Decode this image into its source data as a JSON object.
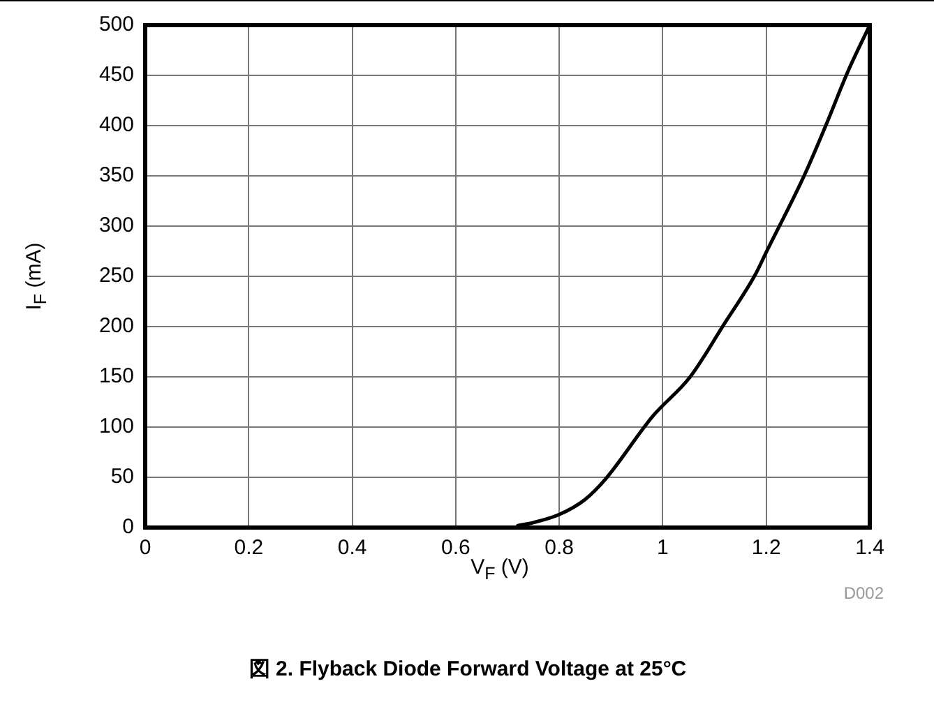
{
  "chart_data": {
    "type": "line",
    "title": "図 2. Flyback Diode Forward Voltage at 25°C",
    "xlabel": "V$_{F}$ (V)",
    "ylabel": "I$_{F}$ (mA)",
    "annotations": [
      "D002"
    ],
    "series": [
      {
        "color": "#000000",
        "x": [
          0.72,
          0.75,
          0.8,
          0.85,
          0.889,
          0.981,
          1.053,
          1.118,
          1.178,
          1.2,
          1.274,
          1.315,
          1.357,
          1.4
        ],
        "values": [
          2,
          5,
          13,
          28,
          48,
          111,
          150,
          202,
          251,
          274,
          351,
          400,
          453,
          500
        ]
      }
    ],
    "xlim": [
      0,
      1.4
    ],
    "xticks": [
      0,
      0.2,
      0.4,
      0.6,
      0.8,
      1,
      1.2,
      1.4
    ],
    "ylim": [
      0,
      500
    ],
    "yticks": [
      0,
      50,
      100,
      150,
      200,
      250,
      300,
      350,
      400,
      450,
      500
    ],
    "grid": true,
    "marker": "none",
    "line_style": "solid"
  }
}
